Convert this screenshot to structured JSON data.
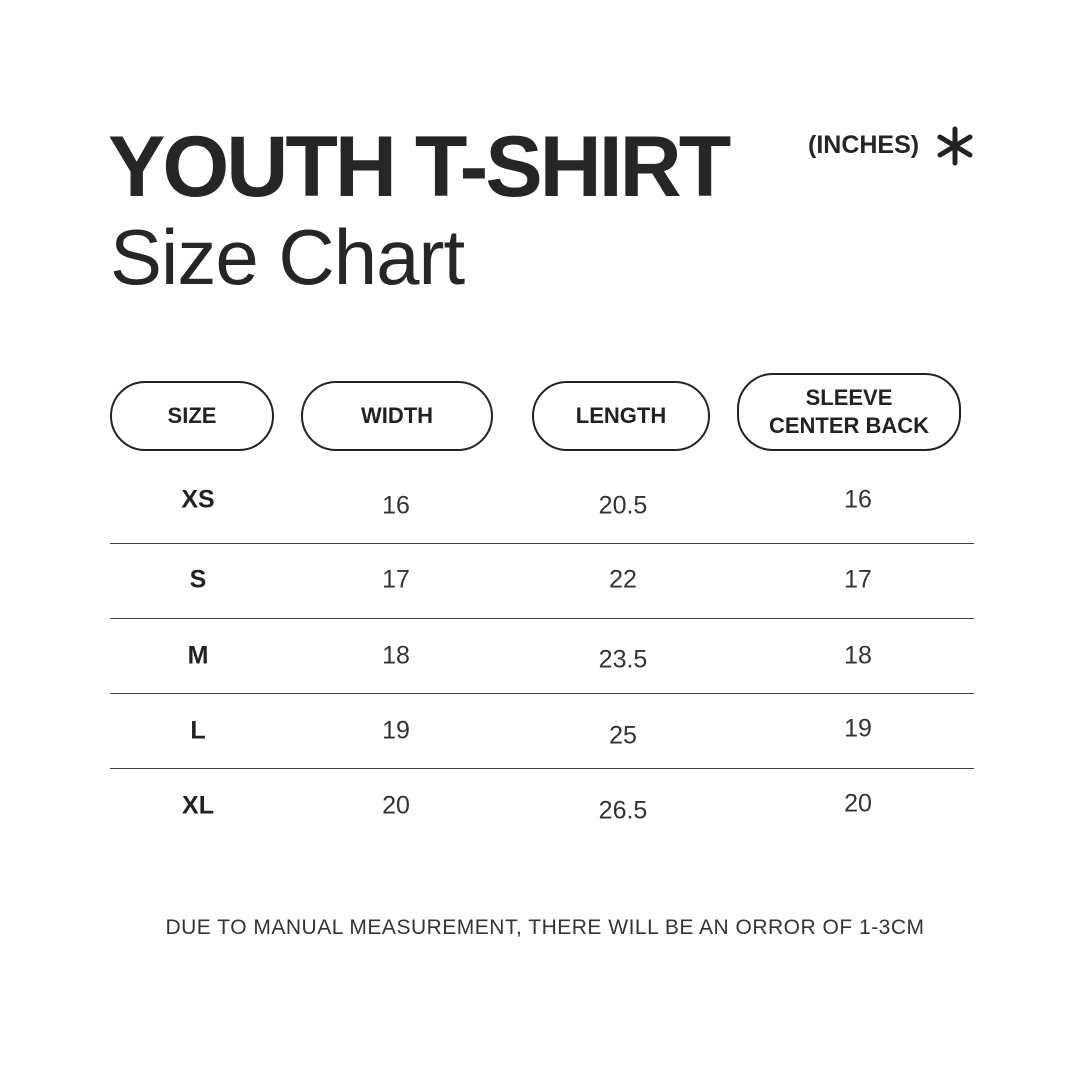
{
  "title": "YOUTH T-SHIRT",
  "subtitle": "Size Chart",
  "units": "(INCHES)",
  "units_icon": "asterisk-icon",
  "headers": [
    "SIZE",
    "WIDTH",
    "LENGTH",
    "SLEEVE CENTER BACK"
  ],
  "rows": [
    [
      "XS",
      "16",
      "20.5",
      "16"
    ],
    [
      "S",
      "17",
      "22",
      "17"
    ],
    [
      "M",
      "18",
      "23.5",
      "18"
    ],
    [
      "L",
      "19",
      "25",
      "19"
    ],
    [
      "XL",
      "20",
      "26.5",
      "20"
    ]
  ],
  "note": "DUE TO MANUAL MEASUREMENT, THERE WILL BE AN ORROR OF 1-3CM"
}
